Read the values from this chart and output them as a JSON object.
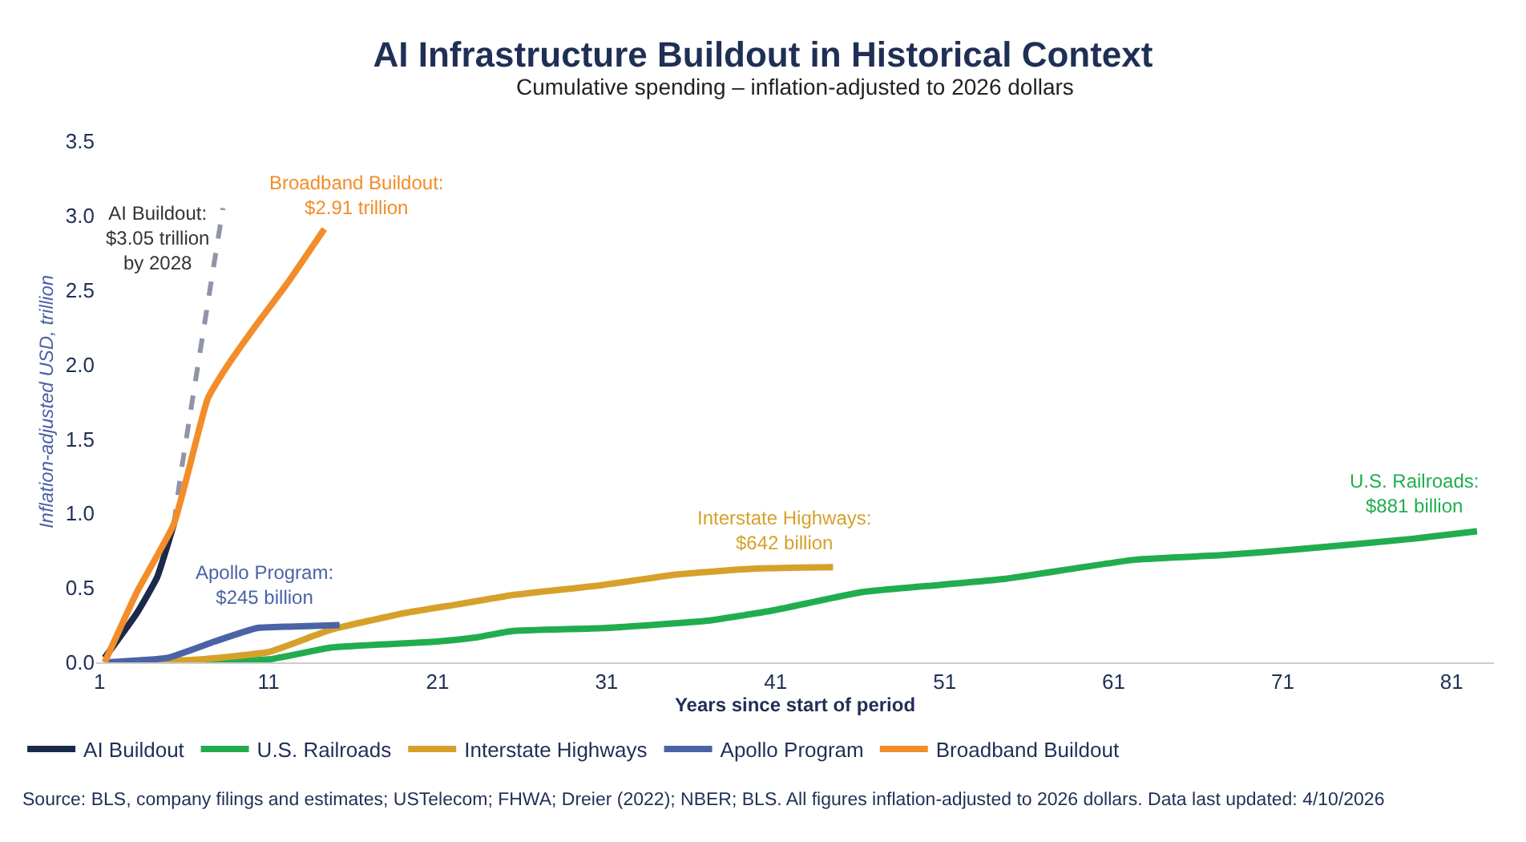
{
  "chart_data": {
    "type": "line",
    "title": "AI Infrastructure Buildout in Historical Context",
    "subtitle": "Cumulative spending – inflation-adjusted to 2026 dollars",
    "xlabel": "Years since start of period",
    "ylabel": "Inflation-adjusted USD, trillion",
    "xlim": [
      0.8,
      83.5
    ],
    "xticks": [
      1,
      11,
      21,
      31,
      41,
      51,
      61,
      71,
      81
    ],
    "ylim": [
      0,
      3.5
    ],
    "yticks": [
      {
        "value": 0,
        "label": "0.0"
      },
      0.5,
      {
        "value": 1,
        "label": "1.0"
      },
      1.5,
      {
        "value": 2,
        "label": "2.0"
      },
      2.5,
      {
        "value": 3,
        "label": "3.0"
      },
      3.5
    ],
    "legend": "bottom",
    "marker": "none",
    "series": [
      {
        "name": "AI Buildout",
        "color": "#1b2a48",
        "x": [
          1.3,
          3.2,
          4.4,
          5.4
        ],
        "values": [
          0.03,
          0.33,
          0.57,
          0.93
        ]
      },
      {
        "color": "#8f94a8",
        "line_style": "dashed",
        "x": [
          5.4,
          5.8,
          8.3
        ],
        "values": [
          0.93,
          1.26,
          3.05
        ]
      },
      {
        "name": "U.S. Railroads",
        "color": "#21ad4f",
        "x": [
          3,
          11,
          14.7,
          21,
          23.4,
          25.4,
          30.8,
          37,
          40.9,
          46,
          50.7,
          54.5,
          62.3,
          67.4,
          72,
          78.7,
          82.5
        ],
        "values": [
          0,
          0.02,
          0.1,
          0.14,
          0.17,
          0.21,
          0.23,
          0.28,
          0.35,
          0.47,
          0.52,
          0.56,
          0.69,
          0.72,
          0.76,
          0.83,
          0.88
        ]
      },
      {
        "name": "Interstate Highways",
        "color": "#d6a12b",
        "x": [
          3,
          7,
          11,
          14.7,
          19,
          22.2,
          25.3,
          30.8,
          35.1,
          39.8,
          44.4
        ],
        "values": [
          0,
          0.02,
          0.07,
          0.22,
          0.33,
          0.39,
          0.45,
          0.52,
          0.59,
          0.63,
          0.64
        ]
      },
      {
        "name": "Apollo Program",
        "color": "#4b63a6",
        "x": [
          1.3,
          5,
          7.8,
          10.3,
          12.2,
          15.2
        ],
        "values": [
          0,
          0.03,
          0.14,
          0.23,
          0.24,
          0.25
        ]
      },
      {
        "name": "Broadband Buildout",
        "color": "#f28d2a",
        "x": [
          1.3,
          3.2,
          5.4,
          7.4,
          8.5,
          10.3,
          12.2,
          14.3
        ],
        "values": [
          0,
          0.47,
          0.93,
          1.77,
          1.98,
          2.27,
          2.56,
          2.91
        ]
      }
    ],
    "annotations": [
      {
        "text": "AI Buildout:\n$3.05 trillion\nby 2028",
        "x": 8.3,
        "y": 3.05
      },
      {
        "text": "Broadband Buildout:\n$2.91 trillion",
        "x": 14.3,
        "y": 2.91
      },
      {
        "text": "Apollo Program:\n$245 billion",
        "x": 15.2,
        "y": 0.25
      },
      {
        "text": "Interstate Highways:\n$642 billion",
        "x": 44.4,
        "y": 0.64
      },
      {
        "text": "U.S. Railroads:\n$881 billion",
        "x": 82.5,
        "y": 0.88
      },
      "Source: BLS, company filings and estimates; USTelecom; FHWA; Dreier (2022); NBER; BLS. All figures inflation-adjusted to 2026 dollars. Data last updated: 4/10/2026"
    ]
  }
}
